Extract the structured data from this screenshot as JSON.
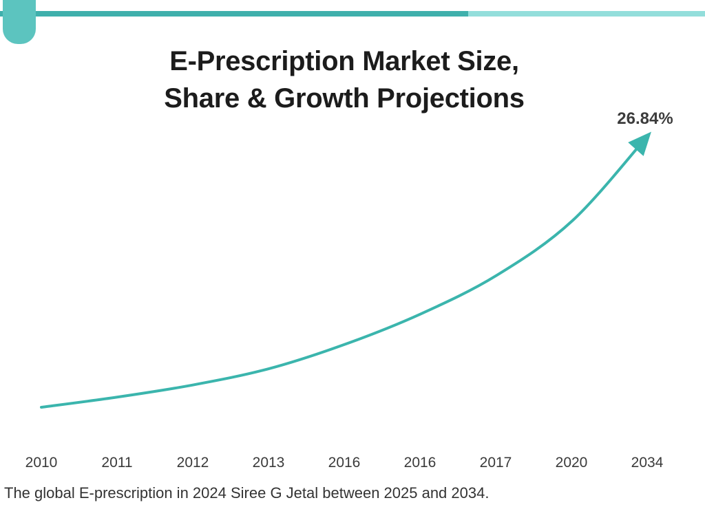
{
  "title": {
    "line1": "E-Prescription Market Size,",
    "line2": "Share & Growth Projections"
  },
  "footer_text": "The global E-prescription in 2024 Siree G Jetal between 2025 and 2034.",
  "colors": {
    "accent": "#3fb0ac",
    "accent_light": "#93dedb",
    "line": "#3bb5ad",
    "text": "#1c1c1c"
  },
  "chart_data": {
    "type": "line",
    "categories": [
      "2010",
      "2011",
      "2012",
      "2013",
      "2016",
      "2016",
      "2017",
      "2020",
      "2034"
    ],
    "values": [
      0.0,
      1.0,
      2.2,
      3.8,
      6.2,
      9.2,
      13.0,
      18.4,
      26.84
    ],
    "ylim": [
      0,
      26.84
    ],
    "end_label": "26.84%",
    "end_arrow": true,
    "grid": false,
    "legend": "none",
    "xlabel": "",
    "ylabel": ""
  }
}
